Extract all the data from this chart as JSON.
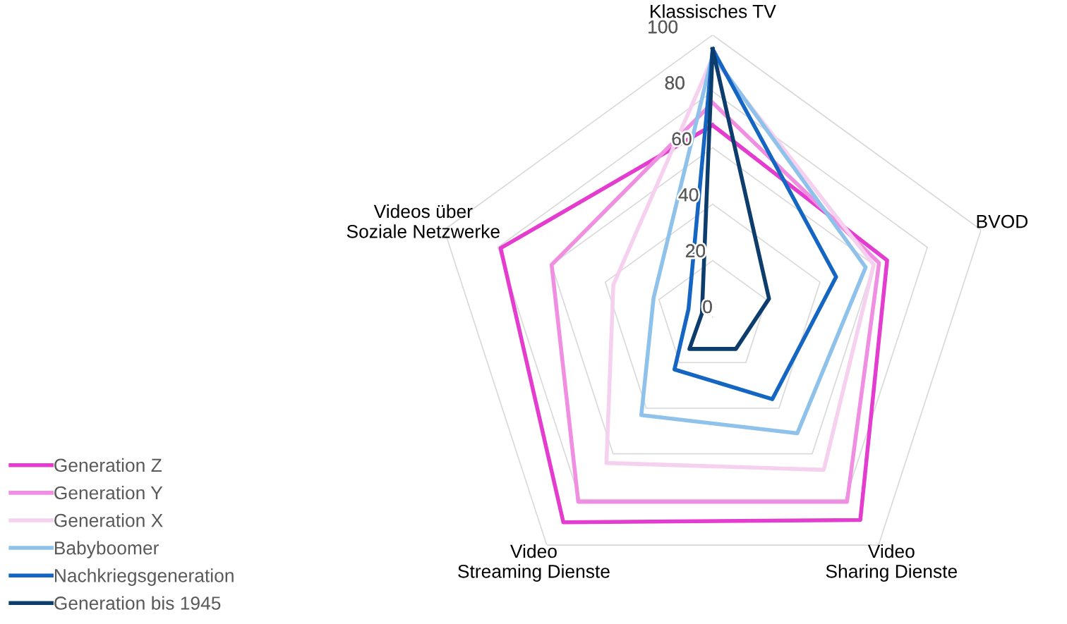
{
  "chart_data": {
    "type": "radar",
    "categories": [
      "Klassisches TV",
      "BVOD",
      "Video\nSharing Dienste",
      "Video\nStreaming Dienste",
      "Videos über\nSoziale Netzwerke"
    ],
    "series": [
      {
        "name": "Generation Z",
        "color": "#e43ccf",
        "values": [
          68,
          65,
          89,
          90,
          79
        ]
      },
      {
        "name": "Generation Y",
        "color": "#f08ee2",
        "values": [
          76,
          62,
          81,
          81,
          60
        ]
      },
      {
        "name": "Generation X",
        "color": "#f6d0ef",
        "values": [
          92,
          60,
          67,
          64,
          37
        ]
      },
      {
        "name": "Babyboomer",
        "color": "#8ec2ea",
        "values": [
          93,
          57,
          51,
          43,
          22
        ]
      },
      {
        "name": "Nachkriegsgeneration",
        "color": "#1466c2",
        "values": [
          95,
          46,
          36,
          23,
          9
        ]
      },
      {
        "name": "Generation bis 1945",
        "color": "#0d3d6c",
        "values": [
          95,
          21,
          14,
          14,
          4
        ]
      }
    ],
    "ylim": [
      0,
      100
    ],
    "yticks": [
      0,
      20,
      40,
      60,
      80,
      100
    ],
    "grid": true,
    "legend": "bottom left",
    "marker": "none",
    "line_style": "solid"
  }
}
